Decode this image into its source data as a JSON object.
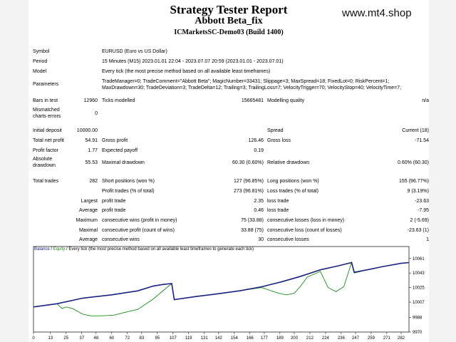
{
  "header": {
    "title": "Strategy Tester Report",
    "subtitle": "Abbott Beta_fix",
    "server": "ICMarketsSC-Demo03 (Build 1400)",
    "watermark": "www.mt4.shop"
  },
  "settings": {
    "symbol_label": "Symbol",
    "symbol": "EURUSD (Euro vs US Dollar)",
    "period_label": "Period",
    "period": "15 Minutes (M15) 2023.01.01 22:04 - 2023.07.07 20:59 (2023.01.01 - 2023.07.01)",
    "model_label": "Model",
    "model": "Every tick (the most precise method based on all available least timeframes)",
    "parameters_label": "Parameters",
    "parameters_line1": "TradeManager=0; TradeComment=\"Abbott Beta\"; MagicNumber=33431; Slippage=3; MaxSpread=18; FixedLot=0; RiskPercent=1;",
    "parameters_line2": "MaxDrawdown=30; TradeDeviation=3; TradeDelta=12; Trailing=3; TrailingLoss=7; VelocityTrigger=70; VelocityStop=40; VelocityTime=7;"
  },
  "quality": {
    "bars_label": "Bars in test",
    "bars": "12960",
    "ticks_label": "Ticks modelled",
    "ticks": "15665481",
    "mq_label": "Modelling quality",
    "mq": "n/a",
    "mismatch_label1": "Mismatched",
    "mismatch_label2": "charts errors",
    "mismatch": "0"
  },
  "results": {
    "initial_deposit_label": "Initial deposit",
    "initial_deposit": "10000.00",
    "spread_label": "Spread",
    "spread": "Current (18)",
    "net_profit_label": "Total net profit",
    "net_profit": "54.91",
    "gross_profit_label": "Gross profit",
    "gross_profit": "126.46",
    "gross_loss_label": "Gross loss",
    "gross_loss": "-71.54",
    "profit_factor_label": "Profit factor",
    "profit_factor": "1.77",
    "expected_payoff_label": "Expected payoff",
    "expected_payoff": "0.19",
    "abs_dd_label1": "Absolute",
    "abs_dd_label2": "drawdown",
    "abs_dd": "55.53",
    "max_dd_label": "Maximal drawdown",
    "max_dd": "60.30 (0.60%)",
    "rel_dd_label": "Relative drawdown",
    "rel_dd": "0.60% (60.30)"
  },
  "trades": {
    "total_label": "Total trades",
    "total": "282",
    "short_label": "Short positions (won %)",
    "short": "127 (96.85%)",
    "long_label": "Long positions (won %)",
    "long": "155 (96.77%)",
    "profit_trades_label": "Profit trades (% of total)",
    "profit_trades": "273 (96.81%)",
    "loss_trades_label": "Loss trades (% of total)",
    "loss_trades": "9 (3.19%)",
    "largest_label": "Largest",
    "largest_profit_label": "profit trade",
    "largest_profit": "2.35",
    "largest_loss_label": "loss trade",
    "largest_loss": "-23.63",
    "average_label": "Average",
    "average_profit_label": "profit trade",
    "average_profit": "0.46",
    "average_loss_label": "loss trade",
    "average_loss": "-7.95",
    "maximum_label": "Maximum",
    "max_cons_wins_label": "consecutive wins (profit in money)",
    "max_cons_wins": "75 (33.88)",
    "max_cons_losses_label": "consecutive losses (loss in money)",
    "max_cons_losses": "2 (-5.69)",
    "maximal_label": "Maximal",
    "maximal_cons_profit_label": "consecutive profit (count of wins)",
    "maximal_cons_profit": "33.88 (75)",
    "maximal_cons_loss_label": "consecutive loss (count of losses)",
    "maximal_cons_loss": "-23.63 (1)",
    "average2_label": "Average",
    "avg_cons_wins_label": "consecutive wins",
    "avg_cons_wins": "30",
    "avg_cons_losses_label": "consecutive losses",
    "avg_cons_losses": "1"
  },
  "chart_data": {
    "type": "line",
    "legend_balance": "Balance",
    "legend_sep": " / ",
    "legend_equity": "Equity",
    "legend_rest": " / Every tick (the most precise method based on all available least timeframes to generate each tick)",
    "x_ticks": [
      "0",
      "13",
      "25",
      "37",
      "48",
      "60",
      "72",
      "83",
      "95",
      "107",
      "119",
      "131",
      "142",
      "154",
      "166",
      "177",
      "189",
      "200",
      "212",
      "224",
      "236",
      "247",
      "259",
      "271",
      "282"
    ],
    "y_ticks": [
      "10061",
      "10043",
      "10025",
      "10007",
      "9988",
      "9970"
    ],
    "ylim": [
      9970,
      10067
    ],
    "xlim": [
      0,
      288
    ],
    "colors": {
      "balance": "#1a237e",
      "equity": "#1b8a1b"
    },
    "series": [
      {
        "id": "balance",
        "points": [
          [
            0,
            10001
          ],
          [
            18,
            10005
          ],
          [
            38,
            10012
          ],
          [
            60,
            10016
          ],
          [
            80,
            10021
          ],
          [
            92,
            10027
          ],
          [
            100,
            10029
          ],
          [
            106,
            10030
          ],
          [
            108,
            10010
          ],
          [
            112,
            10011
          ],
          [
            125,
            10014
          ],
          [
            140,
            10017
          ],
          [
            158,
            10021
          ],
          [
            175,
            10026
          ],
          [
            190,
            10032
          ],
          [
            205,
            10039
          ],
          [
            220,
            10047
          ],
          [
            234,
            10052
          ],
          [
            244,
            10056
          ],
          [
            246,
            10044
          ],
          [
            256,
            10047
          ],
          [
            268,
            10051
          ],
          [
            282,
            10055
          ],
          [
            288,
            10056
          ]
        ]
      },
      {
        "id": "equity",
        "points": [
          [
            0,
            10001
          ],
          [
            18,
            10005
          ],
          [
            22,
            9999
          ],
          [
            25,
            10001
          ],
          [
            30,
            9999
          ],
          [
            38,
            9992
          ],
          [
            44,
            9990
          ],
          [
            52,
            9990
          ],
          [
            62,
            9991
          ],
          [
            72,
            9995
          ],
          [
            80,
            9998
          ],
          [
            92,
            10011
          ],
          [
            100,
            10022
          ],
          [
            106,
            10030
          ],
          [
            108,
            10010
          ],
          [
            112,
            10011
          ],
          [
            125,
            10014
          ],
          [
            140,
            10017
          ],
          [
            158,
            10021
          ],
          [
            175,
            10025
          ],
          [
            188,
            10018
          ],
          [
            194,
            10016
          ],
          [
            200,
            10018
          ],
          [
            205,
            10027
          ],
          [
            210,
            10038
          ],
          [
            220,
            10045
          ],
          [
            226,
            10025
          ],
          [
            232,
            10020
          ],
          [
            238,
            10026
          ],
          [
            244,
            10056
          ],
          [
            246,
            10043
          ],
          [
            256,
            10047
          ],
          [
            268,
            10051
          ],
          [
            282,
            10055
          ],
          [
            288,
            10056
          ]
        ]
      }
    ]
  }
}
